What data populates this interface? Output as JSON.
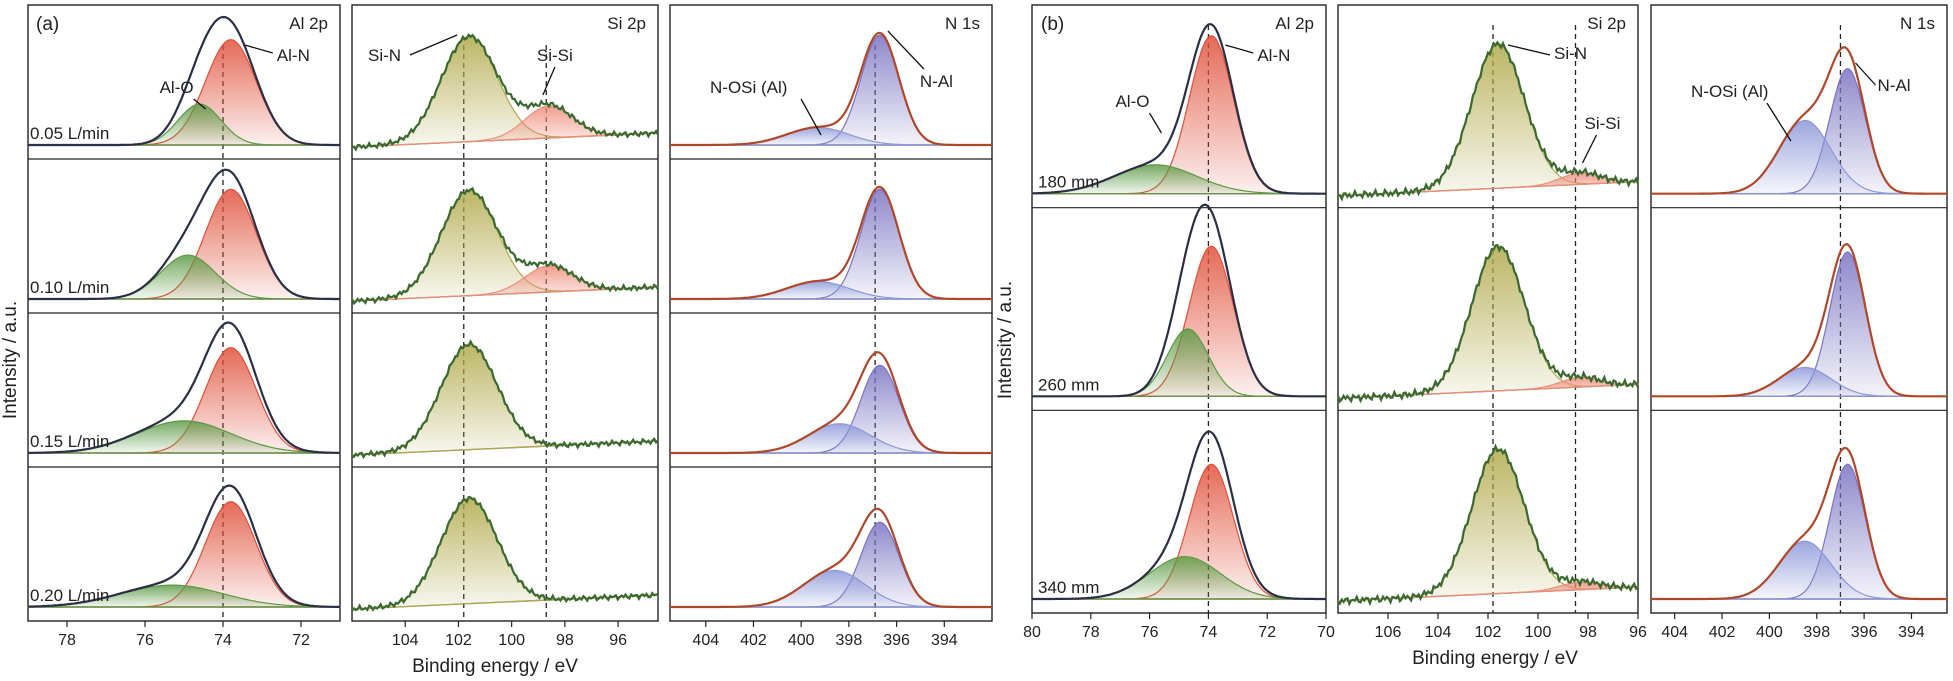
{
  "figure": {
    "y_axis_label": "Intensity / a.u.",
    "x_axis_label": "Binding energy / eV"
  },
  "colors": {
    "al_n_fill": "#e0503a",
    "al_o_fill": "#5c9a45",
    "si_n_fill": "#b0a94a",
    "si_si_fill": "#ef8c7a",
    "n_al_fill": "#7a73c2",
    "n_osi_fill": "#8b97d8",
    "envelope_al": "#2a2f45",
    "envelope_si": "#3a6a30",
    "envelope_n": "#b0472a",
    "background_line": "#8a8a8a"
  },
  "chart_data": [
    {
      "type": "line",
      "group": "(a)",
      "core_level": "Al 2p",
      "xlim": [
        79,
        71
      ],
      "ticks": [
        78,
        76,
        74,
        72
      ],
      "reference_line": 74.0,
      "rows": [
        "0.05 L/min",
        "0.10 L/min",
        "0.15 L/min",
        "0.20 L/min"
      ],
      "components": [
        {
          "name": "Al-N",
          "center": 73.8,
          "width": 0.65,
          "color": "al_n_fill",
          "heights": [
            0.72,
            0.75,
            0.72,
            0.72
          ]
        },
        {
          "name": "Al-O",
          "center": 74.7,
          "width": 0.7,
          "color": "al_o_fill",
          "heights": [
            0.28,
            0.3,
            0.22,
            0.15
          ],
          "centers": [
            74.6,
            74.9,
            75.0,
            75.3
          ],
          "widths": [
            0.55,
            0.7,
            1.2,
            1.3
          ]
        }
      ],
      "envelope_extra": [
        0.78,
        0.8,
        0.78,
        0.78
      ],
      "annotations": [
        "Al-N",
        "Al-O"
      ]
    },
    {
      "type": "line",
      "group": "(a)",
      "core_level": "Si 2p",
      "xlim": [
        106,
        94.5
      ],
      "ticks": [
        104,
        102,
        100,
        98,
        96
      ],
      "reference_lines": [
        101.8,
        98.7
      ],
      "components": [
        {
          "name": "Si-N",
          "center": 101.6,
          "width": 1.05,
          "color": "si_n_fill",
          "heights": [
            0.72,
            0.72,
            0.72,
            0.72
          ]
        },
        {
          "name": "Si-Si",
          "center": 98.6,
          "width": 0.9,
          "color": "si_si_fill",
          "heights": [
            0.22,
            0.18,
            0.0,
            0.0
          ]
        }
      ],
      "annotations": [
        "Si-N",
        "Si-Si"
      ]
    },
    {
      "type": "line",
      "group": "(a)",
      "core_level": "N 1s",
      "xlim": [
        405.5,
        392
      ],
      "ticks": [
        404,
        402,
        400,
        398,
        396,
        394
      ],
      "reference_line": 396.9,
      "components": [
        {
          "name": "N-Al",
          "center": 396.7,
          "width": 0.8,
          "color": "n_al_fill",
          "heights": [
            0.75,
            0.75,
            0.6,
            0.58
          ]
        },
        {
          "name": "N-OSi (Al)",
          "center": 399.0,
          "width": 1.3,
          "color": "n_osi_fill",
          "heights": [
            0.12,
            0.12,
            0.2,
            0.25
          ],
          "centers": [
            399.3,
            399.3,
            398.4,
            398.6
          ]
        }
      ],
      "annotations": [
        "N-OSi (Al)",
        "N-Al"
      ]
    },
    {
      "type": "line",
      "group": "(b)",
      "core_level": "Al 2p",
      "xlim": [
        80,
        70
      ],
      "ticks": [
        80,
        78,
        76,
        74,
        72,
        70
      ],
      "reference_line": 74.0,
      "rows": [
        "180 mm",
        "260 mm",
        "340 mm"
      ],
      "components": [
        {
          "name": "Al-N",
          "center": 73.9,
          "width": 0.75,
          "color": "al_n_fill",
          "heights": [
            0.82,
            0.78,
            0.7
          ]
        },
        {
          "name": "Al-O",
          "center": 75.2,
          "width": 1.0,
          "color": "al_o_fill",
          "heights": [
            0.15,
            0.35,
            0.22
          ],
          "centers": [
            75.8,
            74.7,
            74.8
          ],
          "widths": [
            1.4,
            0.7,
            1.2
          ]
        }
      ],
      "annotations": [
        "Al-N",
        "Al-O"
      ]
    },
    {
      "type": "line",
      "group": "(b)",
      "core_level": "Si 2p",
      "xlim": [
        108,
        96
      ],
      "ticks": [
        106,
        104,
        102,
        100,
        98,
        96
      ],
      "reference_lines": [
        101.8,
        98.5
      ],
      "components": [
        {
          "name": "Si-N",
          "center": 101.6,
          "width": 1.05,
          "color": "si_n_fill",
          "heights": [
            0.75,
            0.75,
            0.75
          ]
        },
        {
          "name": "Si-Si",
          "center": 98.3,
          "width": 0.8,
          "color": "si_si_fill",
          "heights": [
            0.06,
            0.05,
            0.04
          ]
        }
      ],
      "annotations": [
        "Si-N",
        "Si-Si"
      ]
    },
    {
      "type": "line",
      "group": "(b)",
      "core_level": "N 1s",
      "xlim": [
        405,
        392.5
      ],
      "ticks": [
        404,
        402,
        400,
        398,
        396,
        394
      ],
      "reference_line": 397.0,
      "components": [
        {
          "name": "N-Al",
          "center": 396.7,
          "width": 0.75,
          "color": "n_al_fill",
          "heights": [
            0.65,
            0.75,
            0.7
          ]
        },
        {
          "name": "N-OSi (Al)",
          "center": 398.5,
          "width": 1.1,
          "color": "n_osi_fill",
          "heights": [
            0.38,
            0.15,
            0.3
          ]
        }
      ],
      "annotations": [
        "N-OSi (Al)",
        "N-Al"
      ]
    }
  ]
}
